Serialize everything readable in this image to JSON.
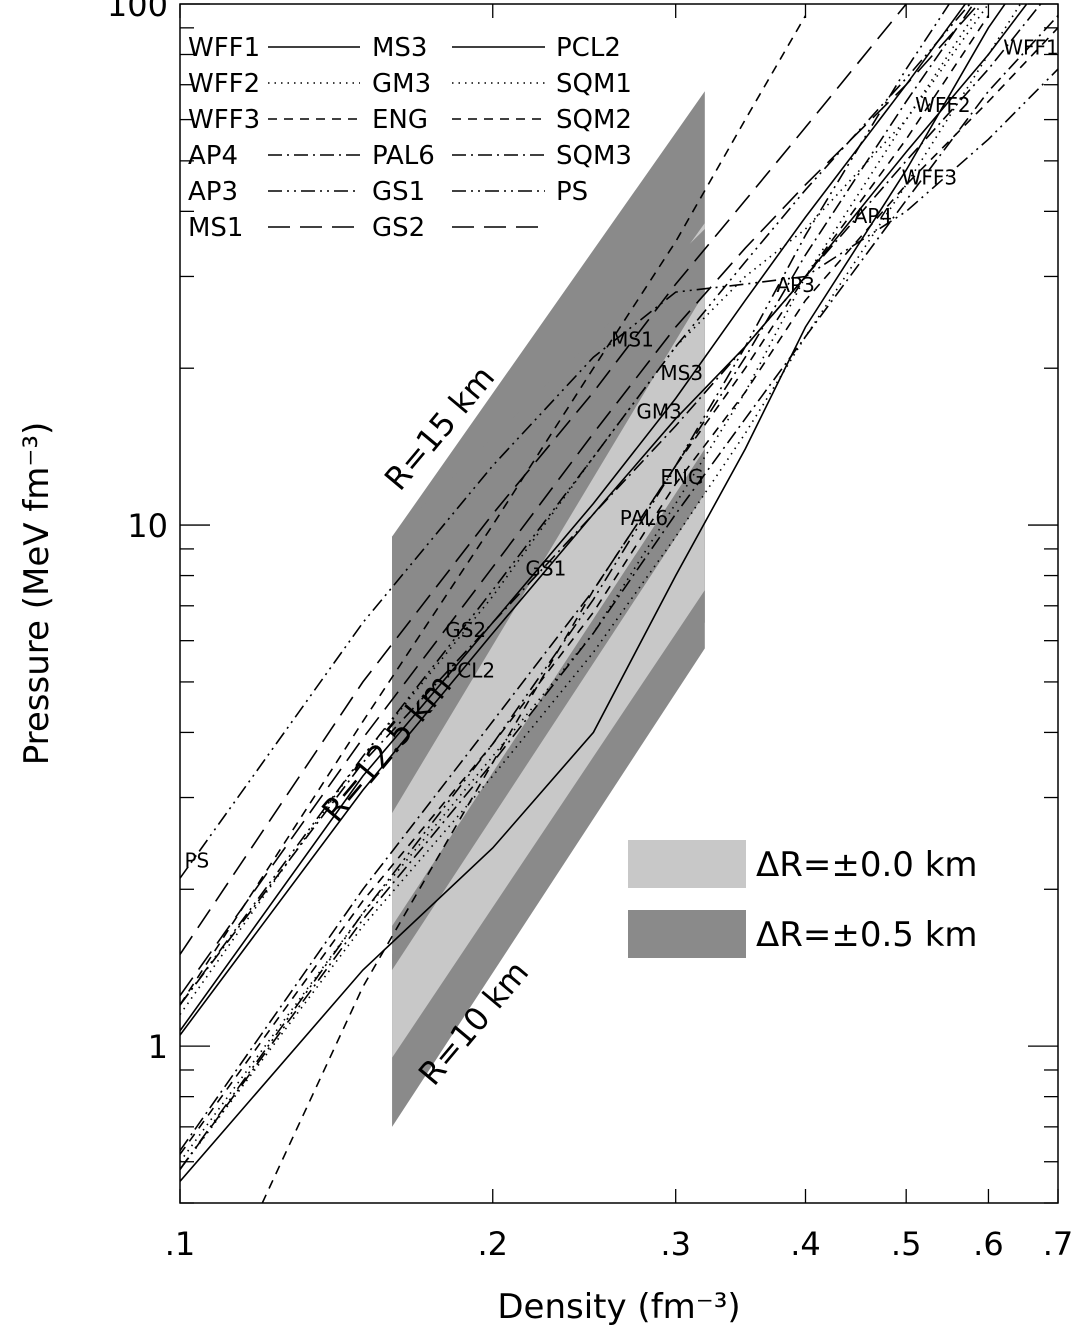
{
  "chart_data": {
    "type": "line",
    "x_scale": "log",
    "y_scale": "log",
    "xlim": [
      0.1,
      0.7
    ],
    "ylim": [
      0.5,
      100
    ],
    "xlabel": "Density (fm⁻³)",
    "ylabel": "Pressure (MeV fm⁻³)",
    "x_ticks": [
      {
        "value": 0.1,
        "label": ".1"
      },
      {
        "value": 0.2,
        "label": ".2"
      },
      {
        "value": 0.3,
        "label": ".3"
      },
      {
        "value": 0.4,
        "label": ".4"
      },
      {
        "value": 0.5,
        "label": ".5"
      },
      {
        "value": 0.6,
        "label": ".6"
      },
      {
        "value": 0.7,
        "label": ".7"
      }
    ],
    "y_ticks": [
      {
        "value": 1,
        "label": "1"
      },
      {
        "value": 10,
        "label": "10"
      },
      {
        "value": 100,
        "label": "100"
      }
    ],
    "legend_position": "top-left",
    "series": [
      {
        "name": "WFF1",
        "dash": "solid",
        "label_text": "WFF1",
        "label_at": [
          0.62,
          80
        ],
        "points": [
          [
            0.1,
            0.55
          ],
          [
            0.15,
            1.4
          ],
          [
            0.2,
            2.4
          ],
          [
            0.25,
            4.0
          ],
          [
            0.3,
            8.0
          ],
          [
            0.35,
            14
          ],
          [
            0.4,
            24
          ],
          [
            0.5,
            48
          ],
          [
            0.6,
            90
          ],
          [
            0.7,
            140
          ]
        ]
      },
      {
        "name": "WFF2",
        "dash": "dotted",
        "label_text": "WFF2",
        "label_at": [
          0.51,
          62
        ],
        "points": [
          [
            0.1,
            0.6
          ],
          [
            0.15,
            1.8
          ],
          [
            0.2,
            3.6
          ],
          [
            0.25,
            6.2
          ],
          [
            0.3,
            11
          ],
          [
            0.35,
            18
          ],
          [
            0.4,
            30
          ],
          [
            0.5,
            60
          ],
          [
            0.6,
            105
          ],
          [
            0.7,
            160
          ]
        ]
      },
      {
        "name": "WFF3",
        "dash": "dashed",
        "label_text": "WFF3",
        "label_at": [
          0.495,
          45
        ],
        "points": [
          [
            0.1,
            0.62
          ],
          [
            0.15,
            1.9
          ],
          [
            0.2,
            3.8
          ],
          [
            0.25,
            6.8
          ],
          [
            0.3,
            12
          ],
          [
            0.35,
            18
          ],
          [
            0.4,
            27
          ],
          [
            0.5,
            45
          ],
          [
            0.6,
            65
          ],
          [
            0.7,
            90
          ]
        ]
      },
      {
        "name": "AP4",
        "dash": "dashdot",
        "label_text": "AP4",
        "label_at": [
          0.445,
          38
        ],
        "points": [
          [
            0.1,
            0.63
          ],
          [
            0.15,
            2.0
          ],
          [
            0.2,
            4.2
          ],
          [
            0.25,
            7.5
          ],
          [
            0.3,
            13
          ],
          [
            0.35,
            21
          ],
          [
            0.4,
            33
          ],
          [
            0.5,
            65
          ],
          [
            0.6,
            110
          ],
          [
            0.7,
            170
          ]
        ]
      },
      {
        "name": "AP3",
        "dash": "dashdotdot",
        "label_text": "AP3",
        "label_at": [
          0.375,
          28
        ],
        "points": [
          [
            0.1,
            0.58
          ],
          [
            0.15,
            1.8
          ],
          [
            0.2,
            3.8
          ],
          [
            0.25,
            7.2
          ],
          [
            0.3,
            13
          ],
          [
            0.35,
            22
          ],
          [
            0.4,
            36
          ],
          [
            0.5,
            75
          ],
          [
            0.6,
            130
          ]
        ]
      },
      {
        "name": "MS1",
        "dash": "longdash",
        "label_text": "MS1",
        "label_at": [
          0.26,
          22
        ],
        "points": [
          [
            0.1,
            1.5
          ],
          [
            0.15,
            5.0
          ],
          [
            0.2,
            10.5
          ],
          [
            0.25,
            18
          ],
          [
            0.3,
            29
          ],
          [
            0.35,
            42
          ],
          [
            0.4,
            58
          ],
          [
            0.5,
            100
          ]
        ]
      },
      {
        "name": "MS3",
        "dash": "solid",
        "label_text": "MS3",
        "label_at": [
          0.29,
          19
        ],
        "points": [
          [
            0.1,
            1.07
          ],
          [
            0.15,
            3.3
          ],
          [
            0.2,
            6.5
          ],
          [
            0.25,
            11
          ],
          [
            0.3,
            17.5
          ],
          [
            0.35,
            27
          ],
          [
            0.4,
            39
          ],
          [
            0.5,
            70
          ],
          [
            0.6,
            115
          ]
        ]
      },
      {
        "name": "GM3",
        "dash": "dotted",
        "label_text": "GM3",
        "label_at": [
          0.275,
          16
        ],
        "points": [
          [
            0.1,
            1.15
          ],
          [
            0.15,
            3.6
          ],
          [
            0.2,
            7.3
          ],
          [
            0.25,
            13.5
          ],
          [
            0.3,
            22
          ],
          [
            0.35,
            30
          ],
          [
            0.4,
            37
          ],
          [
            0.5,
            60
          ],
          [
            0.6,
            100
          ]
        ]
      },
      {
        "name": "ENG",
        "dash": "dashed",
        "label_text": "ENG",
        "label_at": [
          0.29,
          12
        ],
        "points": [
          [
            0.12,
            0.5
          ],
          [
            0.15,
            1.3
          ],
          [
            0.2,
            3.5
          ],
          [
            0.25,
            7.5
          ],
          [
            0.3,
            13
          ],
          [
            0.35,
            20
          ],
          [
            0.4,
            30
          ],
          [
            0.5,
            55
          ],
          [
            0.6,
            95
          ]
        ]
      },
      {
        "name": "PAL6",
        "dash": "dashdot",
        "label_text": "PAL6",
        "label_at": [
          0.265,
          10
        ],
        "points": [
          [
            0.1,
            0.58
          ],
          [
            0.15,
            1.75
          ],
          [
            0.2,
            3.5
          ],
          [
            0.25,
            6.2
          ],
          [
            0.3,
            10.5
          ],
          [
            0.35,
            16
          ],
          [
            0.4,
            23
          ],
          [
            0.5,
            42
          ],
          [
            0.6,
            68
          ],
          [
            0.7,
            95
          ]
        ]
      },
      {
        "name": "GS1",
        "dash": "dashdotdot",
        "label_text": "GS1",
        "label_at": [
          0.215,
          8.0
        ],
        "points": [
          [
            0.1,
            1.2
          ],
          [
            0.15,
            3.6
          ],
          [
            0.2,
            7.5
          ],
          [
            0.25,
            13.5
          ],
          [
            0.3,
            22
          ],
          [
            0.35,
            32
          ],
          [
            0.4,
            44
          ],
          [
            0.5,
            72
          ],
          [
            0.6,
            110
          ]
        ]
      },
      {
        "name": "GS2",
        "dash": "longdash",
        "label_text": "GS2",
        "label_at": [
          0.18,
          6.1
        ],
        "points": [
          [
            0.1,
            1.25
          ],
          [
            0.15,
            3.9
          ],
          [
            0.2,
            8.3
          ],
          [
            0.25,
            15
          ],
          [
            0.3,
            24
          ],
          [
            0.35,
            34
          ],
          [
            0.4,
            45
          ],
          [
            0.5,
            70
          ],
          [
            0.6,
            105
          ]
        ]
      },
      {
        "name": "PCL2",
        "dash": "solid",
        "label_text": "PCL2",
        "label_at": [
          0.18,
          5.1
        ],
        "points": [
          [
            0.1,
            1.05
          ],
          [
            0.15,
            3.1
          ],
          [
            0.2,
            6.2
          ],
          [
            0.25,
            10.5
          ],
          [
            0.3,
            16
          ],
          [
            0.35,
            22
          ],
          [
            0.4,
            30
          ],
          [
            0.5,
            52
          ],
          [
            0.6,
            80
          ],
          [
            0.7,
            120
          ]
        ]
      },
      {
        "name": "SQM1",
        "dash": "dotted",
        "label_text": "SQM1",
        "label_at": null,
        "points": [
          [
            0.1,
            0.58
          ],
          [
            0.15,
            1.7
          ],
          [
            0.2,
            3.3
          ],
          [
            0.25,
            5.7
          ],
          [
            0.3,
            9.5
          ],
          [
            0.35,
            15
          ],
          [
            0.4,
            23
          ],
          [
            0.5,
            45
          ],
          [
            0.6,
            80
          ],
          [
            0.7,
            130
          ]
        ]
      },
      {
        "name": "SQM2",
        "dash": "dashed",
        "label_text": "SQM2",
        "label_at": null,
        "points": [
          [
            0.1,
            1.2
          ],
          [
            0.15,
            4.2
          ],
          [
            0.2,
            10
          ],
          [
            0.25,
            20
          ],
          [
            0.3,
            35
          ],
          [
            0.35,
            60
          ],
          [
            0.4,
            95
          ]
        ]
      },
      {
        "name": "SQM3",
        "dash": "dashdot",
        "label_text": "SQM3",
        "label_at": null,
        "points": [
          [
            0.1,
            1.2
          ],
          [
            0.15,
            3.5
          ],
          [
            0.2,
            6.5
          ],
          [
            0.25,
            10.5
          ],
          [
            0.3,
            15.5
          ],
          [
            0.35,
            22
          ],
          [
            0.4,
            30
          ],
          [
            0.5,
            50
          ],
          [
            0.6,
            75
          ],
          [
            0.7,
            110
          ]
        ]
      },
      {
        "name": "PS",
        "dash": "dashdotdot",
        "label_text": "PS",
        "label_at": [
          0.101,
          2.2
        ],
        "points": [
          [
            0.1,
            2.1
          ],
          [
            0.15,
            6.5
          ],
          [
            0.2,
            13
          ],
          [
            0.25,
            21
          ],
          [
            0.3,
            28
          ],
          [
            0.35,
            29
          ],
          [
            0.4,
            30
          ],
          [
            0.5,
            40
          ],
          [
            0.6,
            55
          ],
          [
            0.7,
            75
          ]
        ]
      }
    ],
    "bands": [
      {
        "name": "R=15 km",
        "label": "R=15 km",
        "outer": {
          "left": [
            0.95,
            9.5
          ],
          "right": [
            9.0,
            68
          ]
        },
        "inner": {
          "left": [
            2.7,
            5.5
          ],
          "right": [
            26,
            38
          ]
        }
      },
      {
        "name": "R=12.5 km",
        "label": "R=12.5 km",
        "outer": {
          "left": [
            0.95,
            9.5
          ],
          "right": [
            6.5,
            37
          ]
        },
        "inner": {
          "left": [
            1.5,
            2.8
          ],
          "right": [
            10,
            28
          ]
        }
      },
      {
        "name": "R=10 km",
        "label": "R=10 km",
        "outer": {
          "left": [
            0.7,
            1.7
          ],
          "right": [
            5.8,
            14
          ]
        },
        "inner": {
          "left": [
            0.95,
            1.4
          ],
          "right": [
            7.5,
            11.5
          ]
        }
      }
    ],
    "band_x_range": [
      0.16,
      0.32
    ],
    "box_legend": [
      {
        "label": "ΔR=±0.0 km",
        "color": "#c8c8c8"
      },
      {
        "label": "ΔR=±0.5 km",
        "color": "#8a8a8a"
      }
    ]
  },
  "colors": {
    "dark_band": "#8a8a8a",
    "light_band": "#c8c8c8",
    "line": "#000000",
    "background": "#ffffff"
  }
}
